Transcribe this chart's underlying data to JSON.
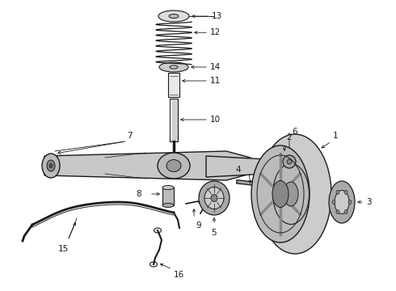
{
  "bg_color": "#ffffff",
  "line_color": "#1a1a1a",
  "label_color": "#000000",
  "figsize": [
    4.9,
    3.6
  ],
  "dpi": 100
}
